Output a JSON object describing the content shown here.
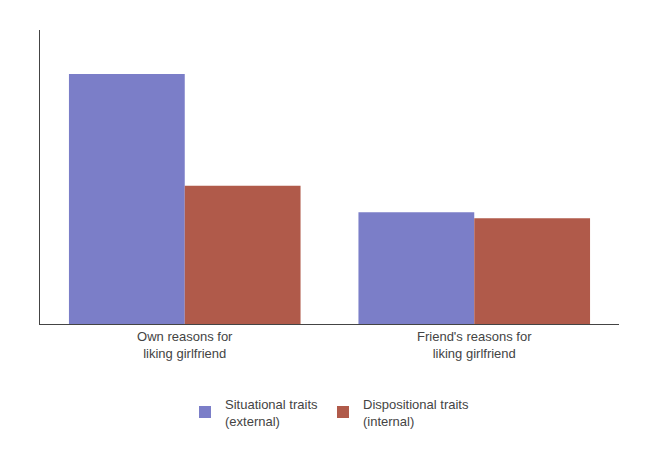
{
  "chart_data": {
    "type": "bar",
    "categories": [
      "Own reasons for\nliking girlfriend",
      "Friend's reasons for\nliking girlfriend"
    ],
    "series": [
      {
        "name": "Situational traits\n(external)",
        "color": "#7b7ec8",
        "values": [
          0.85,
          0.38
        ]
      },
      {
        "name": "Dispositional traits\n(internal)",
        "color": "#b05a4a",
        "values": [
          0.47,
          0.36
        ]
      }
    ],
    "ylim": [
      0,
      1.0
    ],
    "yticks": [],
    "tick_labels": "x",
    "grid": false,
    "legend": "bottom"
  }
}
